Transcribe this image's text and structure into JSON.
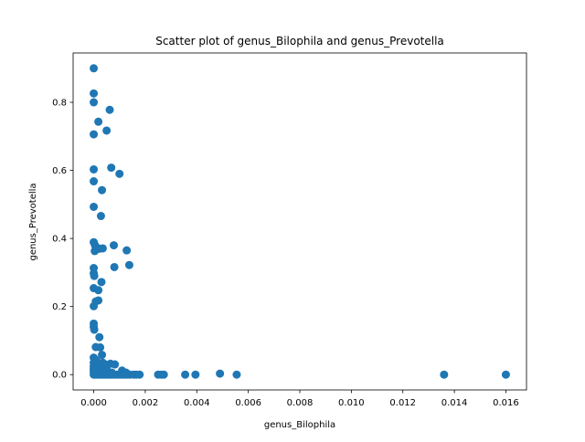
{
  "chart_data": {
    "type": "scatter",
    "title": "Scatter plot of genus_Bilophila and genus_Prevotella",
    "xlabel": "genus_Bilophila",
    "ylabel": "genus_Prevotella",
    "xlim": [
      -0.0008,
      0.0168
    ],
    "ylim": [
      -0.045,
      0.945
    ],
    "xticks": [
      0.0,
      0.002,
      0.004,
      0.006,
      0.008,
      0.01,
      0.012,
      0.014,
      0.016
    ],
    "xtick_labels": [
      "0.000",
      "0.002",
      "0.004",
      "0.006",
      "0.008",
      "0.010",
      "0.012",
      "0.014",
      "0.016"
    ],
    "yticks": [
      0.0,
      0.2,
      0.4,
      0.6,
      0.8
    ],
    "ytick_labels": [
      "0.0",
      "0.2",
      "0.4",
      "0.6",
      "0.8"
    ],
    "grid": false,
    "marker_color": "#1f77b4",
    "points": [
      [
        0.0,
        0.9
      ],
      [
        0.0,
        0.826
      ],
      [
        0.0,
        0.8
      ],
      [
        0.00062,
        0.778
      ],
      [
        0.00018,
        0.743
      ],
      [
        0.0005,
        0.717
      ],
      [
        0.0,
        0.706
      ],
      [
        0.00068,
        0.608
      ],
      [
        0.0,
        0.603
      ],
      [
        0.001,
        0.59
      ],
      [
        0.0,
        0.568
      ],
      [
        0.00032,
        0.542
      ],
      [
        0.0,
        0.493
      ],
      [
        0.00028,
        0.466
      ],
      [
        0.0,
        0.389
      ],
      [
        5e-05,
        0.38
      ],
      [
        0.00078,
        0.38
      ],
      [
        0.00012,
        0.373
      ],
      [
        0.00035,
        0.371
      ],
      [
        0.00022,
        0.37
      ],
      [
        0.00128,
        0.365
      ],
      [
        4e-05,
        0.363
      ],
      [
        0.00138,
        0.322
      ],
      [
        0.0008,
        0.316
      ],
      [
        0.0,
        0.313
      ],
      [
        0.0,
        0.298
      ],
      [
        2e-05,
        0.29
      ],
      [
        0.0003,
        0.272
      ],
      [
        0.0,
        0.254
      ],
      [
        0.00018,
        0.248
      ],
      [
        0.00018,
        0.218
      ],
      [
        8e-05,
        0.215
      ],
      [
        0.0,
        0.201
      ],
      [
        0.0,
        0.15
      ],
      [
        0.0,
        0.14
      ],
      [
        2e-05,
        0.132
      ],
      [
        0.00022,
        0.11
      ],
      [
        8e-05,
        0.081
      ],
      [
        0.00025,
        0.08
      ],
      [
        0.00032,
        0.058
      ],
      [
        0.0,
        0.05
      ],
      [
        0.0001,
        0.042
      ],
      [
        0.0,
        0.035
      ],
      [
        0.00035,
        0.035
      ],
      [
        0.00045,
        0.03
      ],
      [
        0.00065,
        0.032
      ],
      [
        0.00082,
        0.03
      ],
      [
        0.0,
        0.025
      ],
      [
        0.00015,
        0.022
      ],
      [
        0.0,
        0.018
      ],
      [
        0.00028,
        0.015
      ],
      [
        0.0,
        0.012
      ],
      [
        0.00052,
        0.012
      ],
      [
        0.0011,
        0.012
      ],
      [
        0.0,
        0.008
      ],
      [
        0.0002,
        0.008
      ],
      [
        0.00038,
        0.006
      ],
      [
        0.0007,
        0.006
      ],
      [
        0.00125,
        0.006
      ],
      [
        0.0,
        0.0
      ],
      [
        5e-05,
        0.0
      ],
      [
        0.00012,
        0.0
      ],
      [
        0.0002,
        0.0
      ],
      [
        0.00028,
        0.0
      ],
      [
        0.00035,
        0.0
      ],
      [
        0.00042,
        0.0
      ],
      [
        0.0005,
        0.0
      ],
      [
        0.00058,
        0.0
      ],
      [
        0.00065,
        0.0
      ],
      [
        0.00072,
        0.0
      ],
      [
        0.0008,
        0.0
      ],
      [
        0.0009,
        0.0
      ],
      [
        0.001,
        0.0
      ],
      [
        0.0011,
        0.0
      ],
      [
        0.0012,
        0.0
      ],
      [
        0.0013,
        0.0
      ],
      [
        0.0014,
        0.0
      ],
      [
        0.00155,
        0.0
      ],
      [
        0.00165,
        0.0
      ],
      [
        0.00178,
        0.0
      ],
      [
        0.0025,
        0.0
      ],
      [
        0.00262,
        0.0
      ],
      [
        0.00272,
        0.0
      ],
      [
        0.00355,
        0.0
      ],
      [
        0.00395,
        0.0
      ],
      [
        0.0049,
        0.003
      ],
      [
        0.00555,
        0.0
      ],
      [
        0.0136,
        0.0
      ],
      [
        0.016,
        0.0
      ]
    ]
  }
}
